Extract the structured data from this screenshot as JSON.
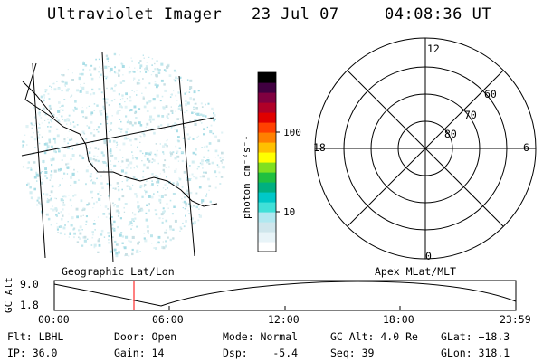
{
  "header": {
    "instrument": "Ultraviolet Imager",
    "date": "23 Jul 07",
    "time": "04:08:36 UT"
  },
  "colorbar": {
    "label": "photon cm⁻²s⁻¹",
    "ticks": [
      "100",
      "10"
    ],
    "colors": [
      "#ffffff",
      "#e8f4f8",
      "#cfe6ec",
      "#b0e8f0",
      "#40e0d8",
      "#00c8c8",
      "#00b080",
      "#20c040",
      "#80e020",
      "#ffff00",
      "#ffc000",
      "#ff8000",
      "#ff4000",
      "#e00000",
      "#b00028",
      "#800040",
      "#400040",
      "#000000"
    ]
  },
  "geographic_panel": {
    "label": "Geographic Lat/Lon"
  },
  "polar_panel": {
    "label": "Apex MLat/MLT",
    "mlt_labels": {
      "top": "12",
      "left": "18",
      "right": "6",
      "bottom": "0"
    },
    "lat_labels": [
      "60",
      "70",
      "80"
    ]
  },
  "altitude_plot": {
    "ylabel": "GC Alt",
    "y_ticks": [
      "9.0",
      "1.8"
    ],
    "x_ticks": [
      "00:00",
      "06:00",
      "12:00",
      "18:00",
      "23:59"
    ],
    "marker_color": "#ff0000"
  },
  "status": {
    "flt": "Flt: LBHL",
    "ip": "IP: 36.0",
    "door": "Door: Open",
    "gain": "Gain: 14",
    "mode": "Mode: Normal",
    "dsp": "Dsp:    -5.4",
    "gc_alt": "GC Alt: 4.0 Re",
    "seq": "Seq: 39",
    "glat": "GLat: −18.3",
    "glon": "GLon: 318.1"
  }
}
